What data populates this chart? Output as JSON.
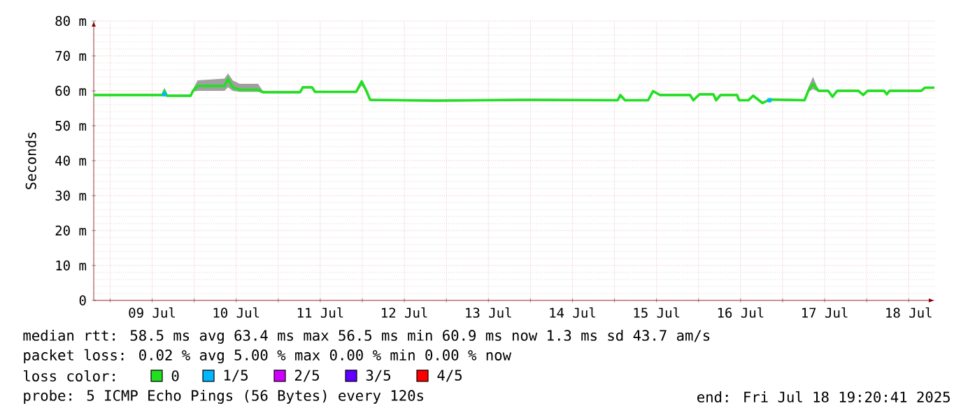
{
  "chart_data": {
    "type": "line",
    "ylabel": "Seconds",
    "legend_title": "loss color:",
    "legend": "bottom",
    "grid": true,
    "marker": "none",
    "xlim": [
      "2025-07-08T19:20",
      "2025-07-18T19:20"
    ],
    "xticks": [
      {
        "value": "2025-07-09T00:00",
        "label": null
      },
      {
        "value": "2025-07-09T12:00",
        "label": "09 Jul"
      },
      {
        "value": "2025-07-10T00:00",
        "label": null
      },
      {
        "value": "2025-07-10T12:00",
        "label": "10 Jul"
      },
      {
        "value": "2025-07-11T00:00",
        "label": null
      },
      {
        "value": "2025-07-11T12:00",
        "label": "11 Jul"
      },
      {
        "value": "2025-07-12T00:00",
        "label": null
      },
      {
        "value": "2025-07-12T12:00",
        "label": "12 Jul"
      },
      {
        "value": "2025-07-13T00:00",
        "label": null
      },
      {
        "value": "2025-07-13T12:00",
        "label": "13 Jul"
      },
      {
        "value": "2025-07-14T00:00",
        "label": null
      },
      {
        "value": "2025-07-14T12:00",
        "label": "14 Jul"
      },
      {
        "value": "2025-07-15T00:00",
        "label": null
      },
      {
        "value": "2025-07-15T12:00",
        "label": "15 Jul"
      },
      {
        "value": "2025-07-16T00:00",
        "label": null
      },
      {
        "value": "2025-07-16T12:00",
        "label": "16 Jul"
      },
      {
        "value": "2025-07-17T00:00",
        "label": null
      },
      {
        "value": "2025-07-17T12:00",
        "label": "17 Jul"
      },
      {
        "value": "2025-07-18T00:00",
        "label": null
      },
      {
        "value": "2025-07-18T12:00",
        "label": "18 Jul"
      }
    ],
    "ylim": [
      0,
      80
    ],
    "yticks": [
      0,
      {
        "value": 10,
        "label": "10 m"
      },
      {
        "value": 20,
        "label": "20 m"
      },
      {
        "value": 30,
        "label": "30 m"
      },
      {
        "value": 40,
        "label": "40 m"
      },
      {
        "value": 50,
        "label": "50 m"
      },
      {
        "value": 60,
        "label": "60 m"
      },
      {
        "value": 70,
        "label": "70 m"
      },
      {
        "value": 80,
        "label": "80 m"
      }
    ],
    "series": [
      {
        "name": "0",
        "color": "#20e020",
        "x": [
          "2025-07-08T19:20",
          "2025-07-09T15:00",
          "2025-07-09T15:30",
          "2025-07-09T16:15",
          "2025-07-09T23:00",
          "2025-07-09T23:40",
          "2025-07-10T01:00",
          "2025-07-10T08:40",
          "2025-07-10T09:40",
          "2025-07-10T11:00",
          "2025-07-10T13:00",
          "2025-07-10T18:15",
          "2025-07-10T19:40",
          "2025-07-11T06:15",
          "2025-07-11T07:00",
          "2025-07-11T09:40",
          "2025-07-11T10:30",
          "2025-07-11T22:15",
          "2025-07-11T23:50",
          "2025-07-12T01:10",
          "2025-07-12T02:15",
          "2025-07-12T20:55",
          "2025-07-13T22:15",
          "2025-07-15T00:55",
          "2025-07-15T01:40",
          "2025-07-15T03:00",
          "2025-07-15T09:35",
          "2025-07-15T11:00",
          "2025-07-15T13:00",
          "2025-07-15T21:35",
          "2025-07-15T22:30",
          "2025-07-16T00:15",
          "2025-07-16T04:15",
          "2025-07-16T05:00",
          "2025-07-16T06:15",
          "2025-07-16T11:00",
          "2025-07-16T11:35",
          "2025-07-16T14:15",
          "2025-07-16T15:35",
          "2025-07-16T18:15",
          "2025-07-16T20:15",
          "2025-07-17T06:15",
          "2025-07-17T07:20",
          "2025-07-17T08:40",
          "2025-07-17T10:15",
          "2025-07-17T13:00",
          "2025-07-17T14:15",
          "2025-07-17T15:35",
          "2025-07-17T21:35",
          "2025-07-17T23:00",
          "2025-07-18T00:15",
          "2025-07-18T05:00",
          "2025-07-18T05:45",
          "2025-07-18T06:30",
          "2025-07-18T15:35",
          "2025-07-18T16:40",
          "2025-07-18T19:20"
        ],
        "values": [
          58.8,
          58.8,
          60.0,
          58.6,
          58.6,
          60.0,
          61.4,
          61.4,
          63.4,
          61.0,
          60.3,
          60.3,
          59.6,
          59.6,
          61.0,
          61.0,
          59.7,
          59.7,
          62.7,
          60.0,
          57.4,
          57.2,
          57.4,
          57.3,
          58.8,
          57.3,
          57.3,
          59.9,
          58.8,
          58.8,
          57.3,
          59.0,
          59.0,
          57.3,
          58.8,
          58.8,
          57.3,
          57.3,
          58.6,
          56.5,
          57.5,
          57.3,
          60.0,
          62.0,
          60.0,
          60.0,
          58.3,
          60.0,
          60.0,
          58.8,
          60.0,
          60.0,
          59.0,
          60.0,
          60.0,
          60.9,
          60.9
        ],
        "lower": [
          58.5,
          58.5,
          59.7,
          58.3,
          58.3,
          59.7,
          60.0,
          60.0,
          61.0,
          60.0,
          59.7,
          59.7,
          59.3,
          59.3,
          60.7,
          60.7,
          59.4,
          59.4,
          61.5,
          59.7,
          57.1,
          56.9,
          57.1,
          57.0,
          58.5,
          57.0,
          57.0,
          59.6,
          58.5,
          58.5,
          57.0,
          58.7,
          58.7,
          57.0,
          58.5,
          58.5,
          57.0,
          57.0,
          58.3,
          56.2,
          57.2,
          57.0,
          59.7,
          60.5,
          59.7,
          59.7,
          58.0,
          59.7,
          59.7,
          58.5,
          59.7,
          59.7,
          58.7,
          59.7,
          59.7,
          60.6,
          60.6
        ],
        "upper": [
          59.1,
          59.1,
          61.0,
          58.9,
          58.9,
          60.5,
          63.0,
          63.5,
          65.0,
          63.0,
          62.0,
          62.0,
          59.9,
          59.9,
          61.3,
          61.3,
          60.0,
          60.0,
          63.0,
          60.3,
          57.7,
          57.5,
          57.7,
          57.6,
          59.1,
          57.6,
          57.6,
          60.2,
          59.1,
          59.1,
          57.6,
          59.3,
          59.3,
          57.6,
          59.1,
          59.1,
          57.6,
          57.6,
          58.9,
          56.8,
          57.8,
          57.6,
          61.0,
          64.0,
          60.3,
          60.3,
          58.6,
          60.3,
          60.3,
          59.1,
          60.3,
          60.3,
          59.3,
          60.3,
          60.3,
          61.2,
          61.2
        ]
      },
      {
        "name": "1/5",
        "color": "#00b8ff",
        "type": "scatter",
        "marker": "square",
        "x": [
          "2025-07-09T15:30",
          "2025-07-16T20:15"
        ],
        "values": [
          59.0,
          57.3
        ]
      },
      {
        "name": "2/5",
        "color": "#d000ff"
      },
      {
        "name": "3/5",
        "color": "#6000ff"
      },
      {
        "name": "4/5",
        "color": "#ff0000"
      }
    ],
    "annotations": [
      "median rtt:  58.5 ms avg  63.4 ms max  56.5 ms min  60.9 ms now  1.3 ms sd  43.7   am/s",
      "packet loss: 0.02 % avg  5.00 % max  0.00 % min  0.00 % now",
      "probe:       5 ICMP Echo Pings (56 Bytes) every 120s",
      "end: Fri Jul 18 19:20:41 2025"
    ]
  }
}
